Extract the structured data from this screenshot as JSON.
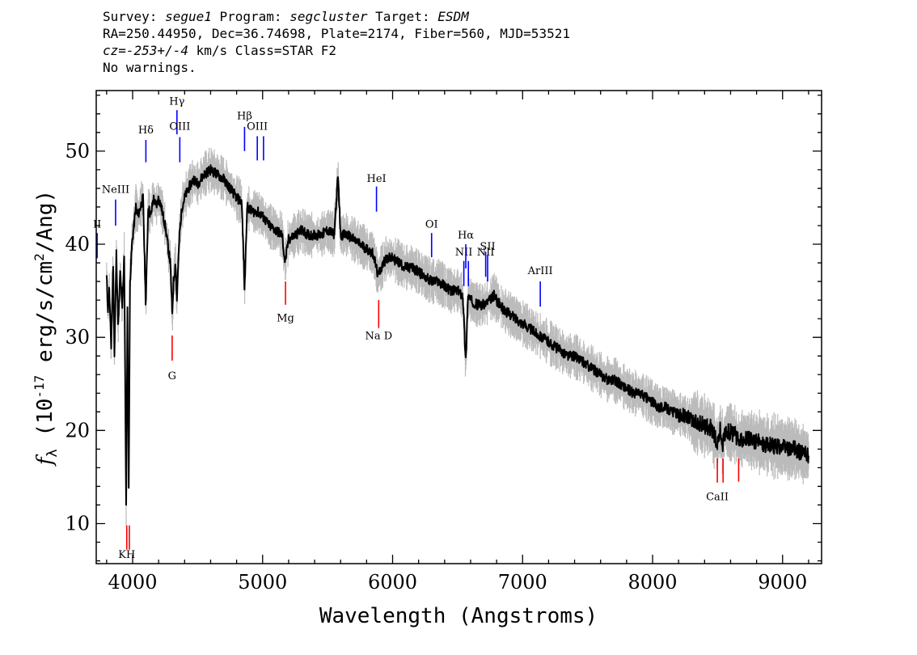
{
  "header": {
    "lines": [
      [
        {
          "t": "Survey: ",
          "i": false
        },
        {
          "t": "segue1",
          "i": true
        },
        {
          "t": " Program: ",
          "i": false
        },
        {
          "t": "segcluster",
          "i": true
        },
        {
          "t": " Target: ",
          "i": false
        },
        {
          "t": "ESDM",
          "i": true
        }
      ],
      [
        {
          "t": "RA=250.44950, Dec=36.74698, Plate=2174, Fiber=560, MJD=53521",
          "i": false
        }
      ],
      [
        {
          "t": "cz=-253+/-4",
          "i": true
        },
        {
          "t": " km/s Class=STAR F2",
          "i": false
        }
      ],
      [
        {
          "t": "No warnings.",
          "i": false
        }
      ]
    ]
  },
  "chart_data": {
    "type": "line",
    "title": "",
    "xlabel": "Wavelength (Angstroms)",
    "ylabel": "f_λ (10^-17 erg/s/cm^2/Ang)",
    "ylabel_parts": {
      "f": "f",
      "sub": "λ",
      "pre": " (10",
      "exp1": "-17",
      "mid": " erg/s/cm",
      "exp2": "2",
      "post": "/Ang)"
    },
    "xlim": [
      3720,
      9300
    ],
    "ylim": [
      5.7,
      56.5
    ],
    "xticks": [
      4000,
      5000,
      6000,
      7000,
      8000,
      9000
    ],
    "yticks": [
      10,
      20,
      30,
      40,
      50
    ],
    "grid": false,
    "series": [
      {
        "role": "flux",
        "color": "#000000",
        "points": [
          [
            3800,
            36.5
          ],
          [
            3810,
            33
          ],
          [
            3820,
            35
          ],
          [
            3835,
            29
          ],
          [
            3850,
            38
          ],
          [
            3860,
            28
          ],
          [
            3875,
            39
          ],
          [
            3889,
            31
          ],
          [
            3905,
            37
          ],
          [
            3920,
            33
          ],
          [
            3935,
            39
          ],
          [
            3950,
            11.8
          ],
          [
            3960,
            33
          ],
          [
            3970,
            14
          ],
          [
            3980,
            36
          ],
          [
            3995,
            40
          ],
          [
            4010,
            42
          ],
          [
            4025,
            44
          ],
          [
            4040,
            43
          ],
          [
            4060,
            44
          ],
          [
            4080,
            45
          ],
          [
            4101,
            33.5
          ],
          [
            4120,
            44
          ],
          [
            4140,
            43
          ],
          [
            4160,
            45
          ],
          [
            4180,
            44
          ],
          [
            4200,
            45
          ],
          [
            4220,
            44
          ],
          [
            4250,
            42
          ],
          [
            4270,
            40
          ],
          [
            4290,
            38
          ],
          [
            4305,
            32.5
          ],
          [
            4315,
            36
          ],
          [
            4330,
            38
          ],
          [
            4340,
            34
          ],
          [
            4360,
            41
          ],
          [
            4380,
            44
          ],
          [
            4400,
            45
          ],
          [
            4430,
            46
          ],
          [
            4470,
            47
          ],
          [
            4500,
            46.5
          ],
          [
            4550,
            47.5
          ],
          [
            4600,
            48
          ],
          [
            4650,
            47.5
          ],
          [
            4700,
            47
          ],
          [
            4750,
            46
          ],
          [
            4800,
            45
          ],
          [
            4840,
            44.5
          ],
          [
            4861,
            35
          ],
          [
            4880,
            44
          ],
          [
            4920,
            43.5
          ],
          [
            4960,
            43.5
          ],
          [
            5000,
            43
          ],
          [
            5050,
            42
          ],
          [
            5100,
            41.5
          ],
          [
            5150,
            41
          ],
          [
            5172,
            38
          ],
          [
            5200,
            40.5
          ],
          [
            5250,
            41
          ],
          [
            5300,
            41.5
          ],
          [
            5350,
            41
          ],
          [
            5400,
            41
          ],
          [
            5450,
            41
          ],
          [
            5500,
            41.5
          ],
          [
            5550,
            41
          ],
          [
            5580,
            47.3
          ],
          [
            5600,
            41
          ],
          [
            5650,
            41
          ],
          [
            5700,
            40.5
          ],
          [
            5750,
            40
          ],
          [
            5800,
            39.5
          ],
          [
            5850,
            39
          ],
          [
            5890,
            36.5
          ],
          [
            5896,
            37
          ],
          [
            5950,
            38.5
          ],
          [
            6000,
            38.5
          ],
          [
            6050,
            38
          ],
          [
            6100,
            37.5
          ],
          [
            6150,
            37.5
          ],
          [
            6200,
            37
          ],
          [
            6250,
            36.5
          ],
          [
            6300,
            36
          ],
          [
            6350,
            36
          ],
          [
            6400,
            35.5
          ],
          [
            6450,
            35
          ],
          [
            6500,
            35
          ],
          [
            6540,
            34.5
          ],
          [
            6563,
            27.3
          ],
          [
            6580,
            34.5
          ],
          [
            6600,
            34
          ],
          [
            6650,
            33.5
          ],
          [
            6700,
            33.5
          ],
          [
            6750,
            34
          ],
          [
            6780,
            34.5
          ],
          [
            6800,
            34
          ],
          [
            6850,
            33
          ],
          [
            6900,
            32.5
          ],
          [
            6950,
            32
          ],
          [
            7000,
            31.5
          ],
          [
            7050,
            31
          ],
          [
            7100,
            30.5
          ],
          [
            7150,
            30
          ],
          [
            7200,
            29.5
          ],
          [
            7250,
            29
          ],
          [
            7300,
            28.5
          ],
          [
            7350,
            28
          ],
          [
            7400,
            28
          ],
          [
            7450,
            27.5
          ],
          [
            7500,
            27
          ],
          [
            7550,
            26.5
          ],
          [
            7600,
            26
          ],
          [
            7650,
            25.5
          ],
          [
            7700,
            25.5
          ],
          [
            7750,
            25
          ],
          [
            7800,
            24.5
          ],
          [
            7850,
            24
          ],
          [
            7900,
            24
          ],
          [
            7950,
            23.5
          ],
          [
            8000,
            23
          ],
          [
            8050,
            22.5
          ],
          [
            8100,
            22.5
          ],
          [
            8150,
            22
          ],
          [
            8200,
            21.8
          ],
          [
            8250,
            21.5
          ],
          [
            8300,
            21
          ],
          [
            8350,
            20.8
          ],
          [
            8400,
            20.5
          ],
          [
            8450,
            20.3
          ],
          [
            8498,
            18.5
          ],
          [
            8520,
            20
          ],
          [
            8542,
            18.5
          ],
          [
            8560,
            20
          ],
          [
            8600,
            19.8
          ],
          [
            8640,
            19.5
          ],
          [
            8662,
            18.6
          ],
          [
            8700,
            19.3
          ],
          [
            8750,
            19
          ],
          [
            8800,
            18.8
          ],
          [
            8850,
            18.6
          ],
          [
            8900,
            18.4
          ],
          [
            8950,
            18.3
          ],
          [
            9000,
            18.2
          ],
          [
            9050,
            18
          ],
          [
            9100,
            18
          ],
          [
            9150,
            17.5
          ],
          [
            9200,
            17.3
          ]
        ]
      },
      {
        "role": "flux error envelope",
        "color": "#bbbbbb",
        "spread": 1.2
      }
    ],
    "line_marks": [
      {
        "label": "KH",
        "x": 3955,
        "y0": 7.2,
        "y1": 9.8,
        "color": "#ff0000",
        "label_y": 6.3
      },
      {
        "label": "",
        "x": 3975,
        "y0": 7.2,
        "y1": 9.8,
        "color": "#ff0000"
      },
      {
        "label": "G",
        "x": 4304,
        "y0": 27.5,
        "y1": 30.2,
        "color": "#ff0000",
        "label_y": 25.5
      },
      {
        "label": "Mg",
        "x": 5176,
        "y0": 33.5,
        "y1": 36.0,
        "color": "#ff0000",
        "label_y": 31.7
      },
      {
        "label": "Na D",
        "x": 5893,
        "y0": 31.0,
        "y1": 34.0,
        "color": "#ff0000",
        "label_y": 29.8
      },
      {
        "label": "CaII",
        "x": 8498,
        "y0": 14.4,
        "y1": 17.0,
        "color": "#ff0000",
        "label_y": 12.5
      },
      {
        "label": "",
        "x": 8542,
        "y0": 14.4,
        "y1": 17.0,
        "color": "#ff0000"
      },
      {
        "label": "",
        "x": 8662,
        "y0": 14.5,
        "y1": 17.0,
        "color": "#ff0000"
      },
      {
        "label": "II",
        "x": 3727,
        "y0": 38.5,
        "y1": 41.2,
        "color": "#0000ff",
        "label_y": 41.8
      },
      {
        "label": "NeIII",
        "x": 3869,
        "y0": 42.0,
        "y1": 44.8,
        "color": "#0000ff",
        "label_y": 45.5
      },
      {
        "label": "Hδ",
        "x": 4102,
        "y0": 48.8,
        "y1": 51.2,
        "color": "#0000ff",
        "label_y": 51.9
      },
      {
        "label": "Hγ",
        "x": 4341,
        "y0": 51.8,
        "y1": 54.4,
        "color": "#0000ff",
        "label_y": 55.0
      },
      {
        "label": "OIII",
        "x": 4363,
        "y0": 48.8,
        "y1": 51.5,
        "color": "#0000ff",
        "label_y": 52.3
      },
      {
        "label": "Hβ",
        "x": 4861,
        "y0": 50.0,
        "y1": 52.6,
        "color": "#0000ff",
        "label_y": 53.4
      },
      {
        "label": "OIII",
        "x": 4959,
        "y0": 49.0,
        "y1": 51.6,
        "color": "#0000ff",
        "label_y": 52.3
      },
      {
        "label": "",
        "x": 5007,
        "y0": 49.0,
        "y1": 51.6,
        "color": "#0000ff"
      },
      {
        "label": "HeI",
        "x": 5876,
        "y0": 43.5,
        "y1": 46.2,
        "color": "#0000ff",
        "label_y": 46.7
      },
      {
        "label": "OI",
        "x": 6300,
        "y0": 38.6,
        "y1": 41.2,
        "color": "#0000ff",
        "label_y": 41.8
      },
      {
        "label": "NII",
        "x": 6548,
        "y0": 35.5,
        "y1": 38.2,
        "color": "#0000ff",
        "label_y": 38.8
      },
      {
        "label": "Hα",
        "x": 6563,
        "y0": 37.4,
        "y1": 40.0,
        "color": "#0000ff",
        "label_y": 40.6
      },
      {
        "label": "",
        "x": 6583,
        "y0": 35.5,
        "y1": 38.2,
        "color": "#0000ff"
      },
      {
        "label": "NII",
        "x": 6716,
        "y0": 36.5,
        "y1": 39.2,
        "color": "#0000ff",
        "label_y": 38.8
      },
      {
        "label": "SII",
        "x": 6731,
        "y0": 36.0,
        "y1": 38.8,
        "color": "#0000ff",
        "label_y": 39.4
      },
      {
        "label": "ArIII",
        "x": 7136,
        "y0": 33.3,
        "y1": 36.0,
        "color": "#0000ff",
        "label_y": 36.8
      }
    ]
  }
}
